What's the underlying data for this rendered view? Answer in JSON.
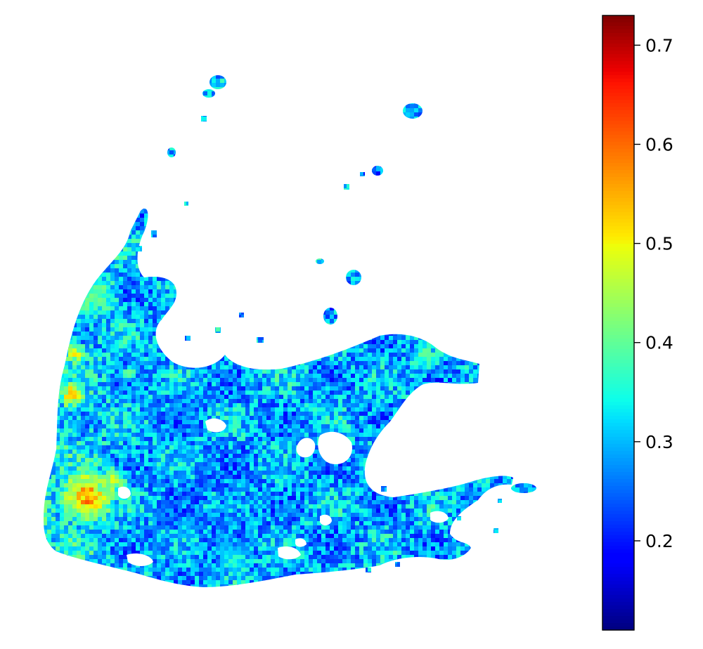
{
  "chart_data": {
    "type": "heatmap",
    "title": "",
    "xlabel": "",
    "ylabel": "",
    "axes_visible": false,
    "colormap": "jet",
    "colorbar": {
      "orientation": "vertical",
      "placement": "right",
      "range": [
        0.11,
        0.73
      ],
      "ticks": [
        0.2,
        0.3,
        0.4,
        0.5,
        0.6,
        0.7
      ],
      "tick_labels": [
        "0.2",
        "0.3",
        "0.4",
        "0.5",
        "0.6",
        "0.7"
      ]
    },
    "jet_stops": [
      {
        "t": 0.0,
        "color": "#00007f"
      },
      {
        "t": 0.11,
        "color": "#0000ff"
      },
      {
        "t": 0.125,
        "color": "#0000ff"
      },
      {
        "t": 0.34,
        "color": "#00ddff"
      },
      {
        "t": 0.375,
        "color": "#0dffea"
      },
      {
        "t": 0.5,
        "color": "#7dff7a"
      },
      {
        "t": 0.625,
        "color": "#edff0a"
      },
      {
        "t": 0.64,
        "color": "#ffea00"
      },
      {
        "t": 0.89,
        "color": "#ff1300"
      },
      {
        "t": 0.91,
        "color": "#ed0000"
      },
      {
        "t": 1.0,
        "color": "#7f0000"
      }
    ],
    "value_summary": {
      "typical_min": 0.18,
      "typical_max": 0.45,
      "hotspot_max": 0.68,
      "dominant_range": [
        0.25,
        0.38
      ]
    }
  }
}
